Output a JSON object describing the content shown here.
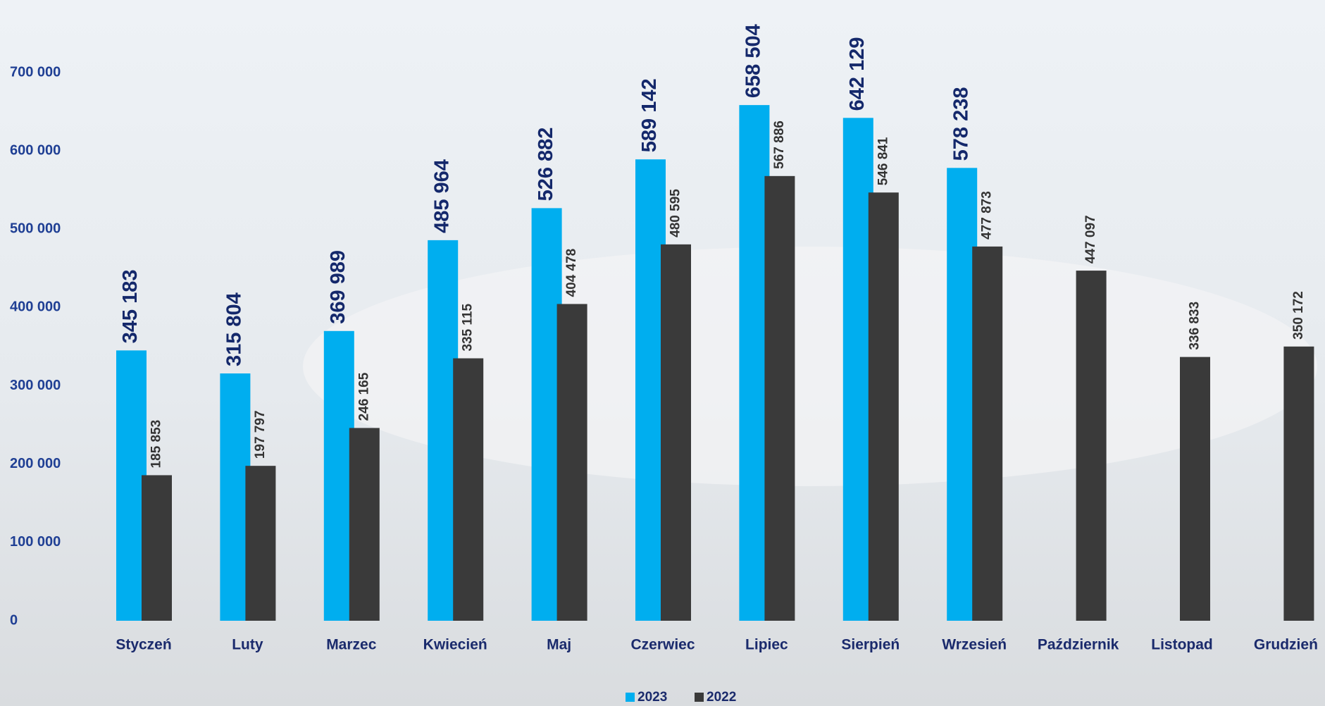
{
  "chart_data": {
    "type": "bar",
    "categories": [
      "Styczeń",
      "Luty",
      "Marzec",
      "Kwiecień",
      "Maj",
      "Czerwiec",
      "Lipiec",
      "Sierpień",
      "Wrzesień",
      "Październik",
      "Listopad",
      "Grudzień"
    ],
    "series": [
      {
        "name": "2023",
        "color": "#00aeef",
        "values": [
          345183,
          315804,
          369989,
          485964,
          526882,
          589142,
          658504,
          642129,
          578238,
          null,
          null,
          null
        ],
        "value_labels": [
          "345 183",
          "315 804",
          "369 989",
          "485 964",
          "526 882",
          "589 142",
          "658 504",
          "642 129",
          "578 238",
          null,
          null,
          null
        ]
      },
      {
        "name": "2022",
        "color": "#3a3a3a",
        "values": [
          185853,
          197797,
          246165,
          335115,
          404478,
          480595,
          567886,
          546841,
          477873,
          447097,
          336833,
          350172
        ],
        "value_labels": [
          "185 853",
          "197 797",
          "246 165",
          "335 115",
          "404 478",
          "480 595",
          "567 886",
          "546 841",
          "477 873",
          "447 097",
          "336 833",
          "350 172"
        ]
      }
    ],
    "ylim": [
      0,
      700000
    ],
    "yticks": [
      {
        "value": 0,
        "label": "0"
      },
      {
        "value": 100000,
        "label": "100 000"
      },
      {
        "value": 200000,
        "label": "200 000"
      },
      {
        "value": 300000,
        "label": "300 000"
      },
      {
        "value": 400000,
        "label": "400 000"
      },
      {
        "value": 500000,
        "label": "500 000"
      },
      {
        "value": 600000,
        "label": "600 000"
      },
      {
        "value": 700000,
        "label": "700 000"
      }
    ],
    "legend": "bottom"
  }
}
